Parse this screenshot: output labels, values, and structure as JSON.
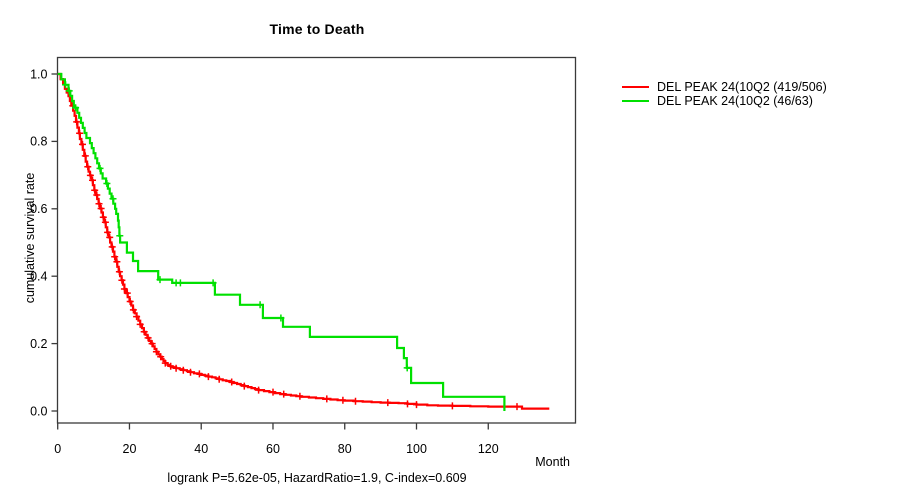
{
  "chart_data": {
    "type": "line",
    "subtype": "kaplan-meier-step",
    "title": "Time to Death",
    "xlabel": "Month",
    "ylabel": "cumulative survival rate",
    "footer": "logrank P=5.62e-05, HazardRatio=1.9, C-index=0.609",
    "xticks": [
      0,
      20,
      40,
      60,
      80,
      100,
      120
    ],
    "yticks": [
      0.0,
      0.2,
      0.4,
      0.6,
      0.8,
      1.0
    ],
    "xlim": [
      0,
      144
    ],
    "ylim": [
      0.0,
      1.0
    ],
    "grid": false,
    "legend_position": "right-outside",
    "axis_color": "#3a3a3a",
    "series": [
      {
        "name": "DEL PEAK 24(10Q2 (419/506)",
        "color": "#ff0000",
        "end_month": 137,
        "steps": [
          [
            0,
            1.0
          ],
          [
            0.8,
            0.985
          ],
          [
            1.5,
            0.97
          ],
          [
            2.0,
            0.956
          ],
          [
            2.5,
            0.945
          ],
          [
            3.0,
            0.934
          ],
          [
            3.4,
            0.92
          ],
          [
            3.8,
            0.906
          ],
          [
            4.3,
            0.891
          ],
          [
            4.7,
            0.876
          ],
          [
            5.1,
            0.858
          ],
          [
            5.5,
            0.841
          ],
          [
            5.9,
            0.824
          ],
          [
            6.2,
            0.807
          ],
          [
            6.6,
            0.791
          ],
          [
            7.0,
            0.775
          ],
          [
            7.4,
            0.757
          ],
          [
            7.8,
            0.74
          ],
          [
            8.2,
            0.725
          ],
          [
            8.6,
            0.71
          ],
          [
            9.0,
            0.699
          ],
          [
            9.4,
            0.685
          ],
          [
            9.8,
            0.67
          ],
          [
            10.2,
            0.655
          ],
          [
            10.6,
            0.641
          ],
          [
            11.0,
            0.629
          ],
          [
            11.4,
            0.615
          ],
          [
            11.8,
            0.601
          ],
          [
            12.2,
            0.589
          ],
          [
            12.6,
            0.575
          ],
          [
            13.0,
            0.56
          ],
          [
            13.4,
            0.545
          ],
          [
            13.8,
            0.53
          ],
          [
            14.2,
            0.515
          ],
          [
            14.6,
            0.5
          ],
          [
            15.0,
            0.487
          ],
          [
            15.4,
            0.473
          ],
          [
            15.8,
            0.458
          ],
          [
            16.2,
            0.443
          ],
          [
            16.6,
            0.428
          ],
          [
            17.0,
            0.413
          ],
          [
            17.4,
            0.4
          ],
          [
            17.8,
            0.388
          ],
          [
            18.2,
            0.375
          ],
          [
            18.6,
            0.362
          ],
          [
            19.0,
            0.35
          ],
          [
            19.5,
            0.338
          ],
          [
            20.0,
            0.325
          ],
          [
            20.5,
            0.313
          ],
          [
            21.0,
            0.3
          ],
          [
            21.5,
            0.29
          ],
          [
            22.0,
            0.28
          ],
          [
            22.5,
            0.268
          ],
          [
            23.0,
            0.257
          ],
          [
            23.5,
            0.246
          ],
          [
            24.0,
            0.235
          ],
          [
            24.5,
            0.226
          ],
          [
            25.0,
            0.217
          ],
          [
            25.5,
            0.208
          ],
          [
            26.0,
            0.2
          ],
          [
            26.5,
            0.192
          ],
          [
            27.0,
            0.184
          ],
          [
            27.5,
            0.176
          ],
          [
            28.0,
            0.168
          ],
          [
            28.5,
            0.161
          ],
          [
            29.0,
            0.154
          ],
          [
            29.5,
            0.148
          ],
          [
            30.0,
            0.142
          ],
          [
            30.6,
            0.137
          ],
          [
            31.3,
            0.133
          ],
          [
            32.0,
            0.13
          ],
          [
            33.0,
            0.127
          ],
          [
            34.0,
            0.124
          ],
          [
            35.0,
            0.121
          ],
          [
            36.0,
            0.118
          ],
          [
            37.0,
            0.115
          ],
          [
            38.0,
            0.112
          ],
          [
            39.0,
            0.11
          ],
          [
            40.0,
            0.107
          ],
          [
            41.0,
            0.105
          ],
          [
            42.0,
            0.102
          ],
          [
            43.0,
            0.1
          ],
          [
            44.0,
            0.097
          ],
          [
            45.0,
            0.094
          ],
          [
            46.0,
            0.091
          ],
          [
            47.0,
            0.089
          ],
          [
            48.0,
            0.086
          ],
          [
            49.0,
            0.083
          ],
          [
            50.0,
            0.08
          ],
          [
            51.0,
            0.077
          ],
          [
            52.0,
            0.074
          ],
          [
            53.0,
            0.071
          ],
          [
            54.0,
            0.068
          ],
          [
            55.0,
            0.065
          ],
          [
            56.0,
            0.062
          ],
          [
            57.5,
            0.059
          ],
          [
            59.0,
            0.056
          ],
          [
            60.5,
            0.053
          ],
          [
            62.0,
            0.05
          ],
          [
            63.5,
            0.048
          ],
          [
            65.0,
            0.046
          ],
          [
            66.5,
            0.044
          ],
          [
            68.0,
            0.042
          ],
          [
            70.0,
            0.04
          ],
          [
            72.0,
            0.038
          ],
          [
            74.0,
            0.036
          ],
          [
            76.0,
            0.034
          ],
          [
            78.0,
            0.032
          ],
          [
            80.0,
            0.031
          ],
          [
            82.5,
            0.029
          ],
          [
            85.0,
            0.028
          ],
          [
            87.5,
            0.026
          ],
          [
            90.0,
            0.025
          ],
          [
            92.5,
            0.024
          ],
          [
            95.0,
            0.023
          ],
          [
            97.5,
            0.021
          ],
          [
            100.0,
            0.019
          ],
          [
            103.0,
            0.017
          ],
          [
            106.0,
            0.016
          ],
          [
            110.0,
            0.015
          ],
          [
            115.0,
            0.014
          ],
          [
            120.0,
            0.013
          ],
          [
            129.4,
            0.007
          ]
        ],
        "censor_months": [
          4.2,
          5.3,
          6.1,
          6.9,
          7.7,
          8.4,
          9.1,
          9.7,
          10.3,
          10.9,
          11.5,
          12.1,
          12.7,
          13.3,
          13.9,
          14.5,
          15.2,
          15.9,
          16.5,
          17.2,
          17.9,
          18.6,
          19.4,
          20.2,
          21.1,
          22,
          23,
          24.1,
          25.2,
          26.3,
          27.5,
          28.7,
          30,
          31.5,
          33,
          35,
          37,
          39.5,
          42,
          45,
          48.5,
          52,
          56,
          60,
          63,
          67.5,
          75,
          79.5,
          83,
          92,
          97.5,
          100,
          110,
          128
        ]
      },
      {
        "name": "DEL PEAK 24(10Q2 (46/63)",
        "color": "#00e000",
        "end_month": 124.5,
        "steps": [
          [
            0,
            1.0
          ],
          [
            1.0,
            0.984
          ],
          [
            2.0,
            0.968
          ],
          [
            3.0,
            0.95
          ],
          [
            3.5,
            0.935
          ],
          [
            4.0,
            0.92
          ],
          [
            4.5,
            0.9
          ],
          [
            5.5,
            0.885
          ],
          [
            6.0,
            0.87
          ],
          [
            6.5,
            0.855
          ],
          [
            7.0,
            0.84
          ],
          [
            7.5,
            0.825
          ],
          [
            8.0,
            0.81
          ],
          [
            9.0,
            0.795
          ],
          [
            9.5,
            0.78
          ],
          [
            10.0,
            0.765
          ],
          [
            10.5,
            0.75
          ],
          [
            11.0,
            0.735
          ],
          [
            11.5,
            0.72
          ],
          [
            12.0,
            0.705
          ],
          [
            12.5,
            0.69
          ],
          [
            13.5,
            0.675
          ],
          [
            14.0,
            0.66
          ],
          [
            14.5,
            0.645
          ],
          [
            15.0,
            0.63
          ],
          [
            15.5,
            0.615
          ],
          [
            16.0,
            0.6
          ],
          [
            16.3,
            0.585
          ],
          [
            16.8,
            0.565
          ],
          [
            17.0,
            0.545
          ],
          [
            17.2,
            0.52
          ],
          [
            17.4,
            0.5
          ],
          [
            19.3,
            0.47
          ],
          [
            21.0,
            0.445
          ],
          [
            22.4,
            0.415
          ],
          [
            28.0,
            0.39
          ],
          [
            31.9,
            0.38
          ],
          [
            43.8,
            0.345
          ],
          [
            50.8,
            0.315
          ],
          [
            57.2,
            0.276
          ],
          [
            62.8,
            0.25
          ],
          [
            70.3,
            0.22
          ],
          [
            94.6,
            0.187
          ],
          [
            96.5,
            0.157
          ],
          [
            97.3,
            0.128
          ],
          [
            98.5,
            0.083
          ],
          [
            107.4,
            0.042
          ],
          [
            124.5,
            0.0
          ]
        ],
        "censor_months": [
          2.2,
          3.2,
          5.0,
          11.8,
          13.7,
          15.4,
          17.3,
          28.5,
          33,
          34.2,
          43.3,
          56.4,
          62.2,
          97.4
        ]
      }
    ]
  }
}
